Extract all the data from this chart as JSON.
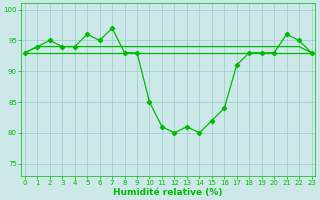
{
  "x": [
    0,
    1,
    2,
    3,
    4,
    5,
    6,
    7,
    8,
    9,
    10,
    11,
    12,
    13,
    14,
    15,
    16,
    17,
    18,
    19,
    20,
    21,
    22,
    23
  ],
  "y_main": [
    93,
    94,
    95,
    94,
    94,
    96,
    95,
    97,
    93,
    93,
    85,
    81,
    80,
    81,
    80,
    82,
    84,
    91,
    93,
    93,
    93,
    96,
    95,
    93
  ],
  "y_flat1": [
    93,
    94,
    94,
    94,
    94,
    94,
    94,
    94,
    94,
    94,
    94,
    94,
    94,
    94,
    94,
    94,
    94,
    94,
    94,
    94,
    94,
    94,
    94,
    93
  ],
  "y_flat2": [
    93,
    93,
    93,
    93,
    93,
    93,
    93,
    93,
    93,
    93,
    93,
    93,
    93,
    93,
    93,
    93,
    93,
    93,
    93,
    93,
    93,
    93,
    93,
    93
  ],
  "line_color": "#00bb00",
  "bg_color": "#cce8e8",
  "grid_color": "#99cccc",
  "xlabel": "Humidité relative (%)",
  "ylim": [
    73,
    101
  ],
  "xlim": [
    -0.3,
    23.3
  ],
  "yticks": [
    75,
    80,
    85,
    90,
    95,
    100
  ],
  "xticks": [
    0,
    1,
    2,
    3,
    4,
    5,
    6,
    7,
    8,
    9,
    10,
    11,
    12,
    13,
    14,
    15,
    16,
    17,
    18,
    19,
    20,
    21,
    22,
    23
  ],
  "xlabel_fontsize": 6.5,
  "tick_fontsize": 5.0
}
